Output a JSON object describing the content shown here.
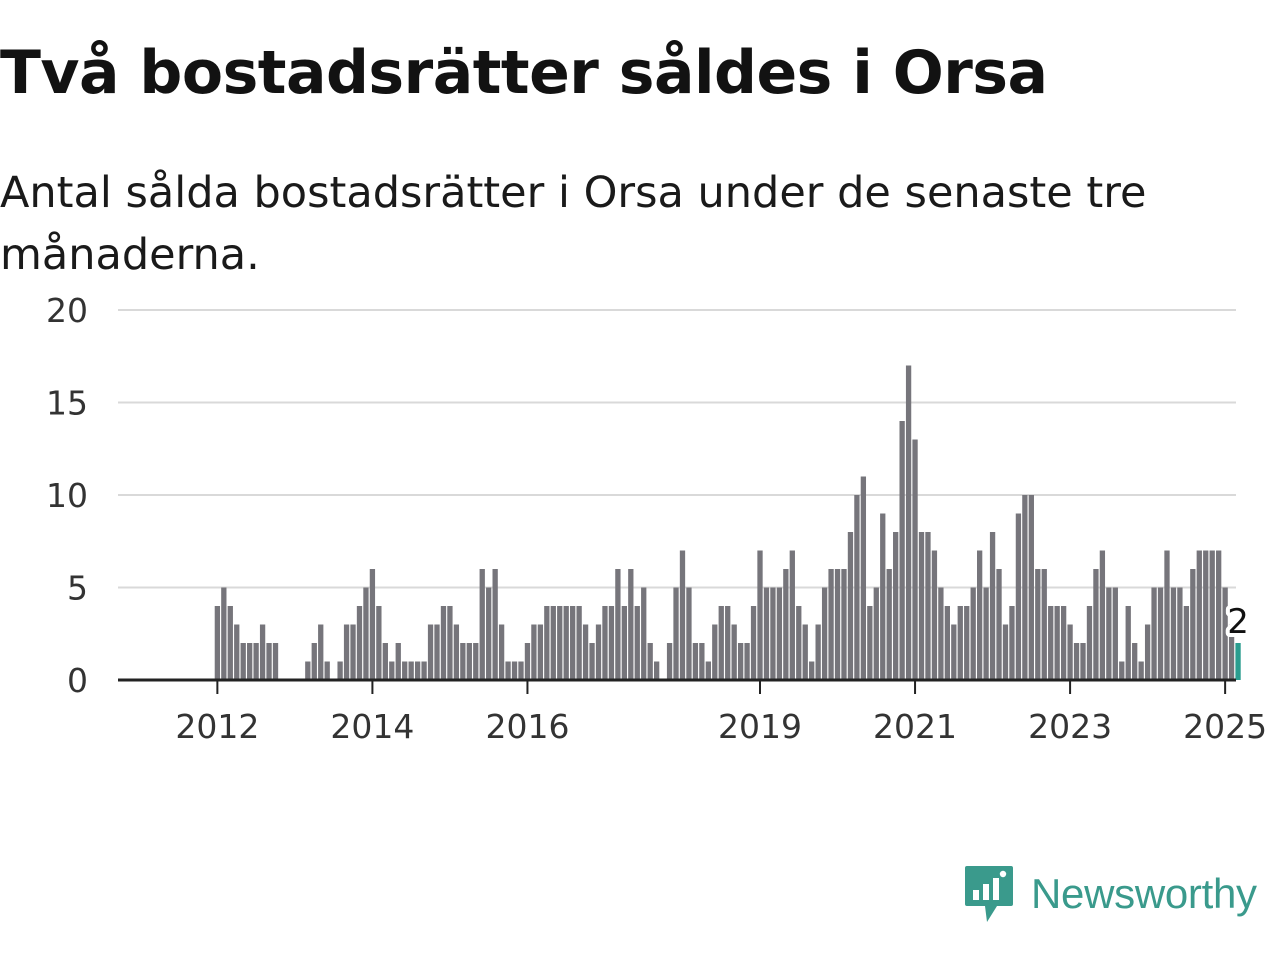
{
  "title": "Två bostadsrätter såldes i Orsa",
  "subtitle": "Antal sålda bostadsrätter i Orsa under de senaste tre månaderna.",
  "brand": {
    "name": "Newsworthy",
    "color": "#3a9a8c"
  },
  "colors": {
    "bar": "#76757b",
    "highlight": "#2a9d8f",
    "grid": "#d9d9d9",
    "axis": "#222222"
  },
  "chart_data": {
    "type": "bar",
    "x_unit": "month",
    "x_start": "2011-06",
    "y_ticks": [
      0,
      5,
      10,
      15,
      20
    ],
    "x_tick_labels": [
      "2012",
      "2014",
      "2016",
      "2019",
      "2021",
      "2023",
      "2025"
    ],
    "ylim": [
      0,
      20
    ],
    "grid": true,
    "highlight_last": true,
    "last_value_label": "2",
    "values": [
      0,
      0,
      0,
      0,
      0,
      0,
      0,
      4,
      5,
      4,
      3,
      2,
      2,
      2,
      3,
      2,
      2,
      0,
      0,
      0,
      0,
      1,
      2,
      3,
      1,
      0,
      1,
      3,
      3,
      4,
      5,
      6,
      4,
      2,
      1,
      2,
      1,
      1,
      1,
      1,
      3,
      3,
      4,
      4,
      3,
      2,
      2,
      2,
      6,
      5,
      6,
      3,
      1,
      1,
      1,
      2,
      3,
      3,
      4,
      4,
      4,
      4,
      4,
      4,
      3,
      2,
      3,
      4,
      4,
      6,
      4,
      6,
      4,
      5,
      2,
      1,
      0,
      2,
      5,
      7,
      5,
      2,
      2,
      1,
      3,
      4,
      4,
      3,
      2,
      2,
      4,
      7,
      5,
      5,
      5,
      6,
      7,
      4,
      3,
      1,
      3,
      5,
      6,
      6,
      6,
      8,
      10,
      11,
      4,
      5,
      9,
      6,
      8,
      14,
      17,
      13,
      8,
      8,
      7,
      5,
      4,
      3,
      4,
      4,
      5,
      7,
      5,
      8,
      6,
      3,
      4,
      9,
      10,
      10,
      6,
      6,
      4,
      4,
      4,
      3,
      2,
      2,
      4,
      6,
      7,
      5,
      5,
      1,
      4,
      2,
      1,
      3,
      5,
      5,
      7,
      5,
      5,
      4,
      6,
      7,
      7,
      7,
      7,
      5,
      3,
      2
    ]
  }
}
